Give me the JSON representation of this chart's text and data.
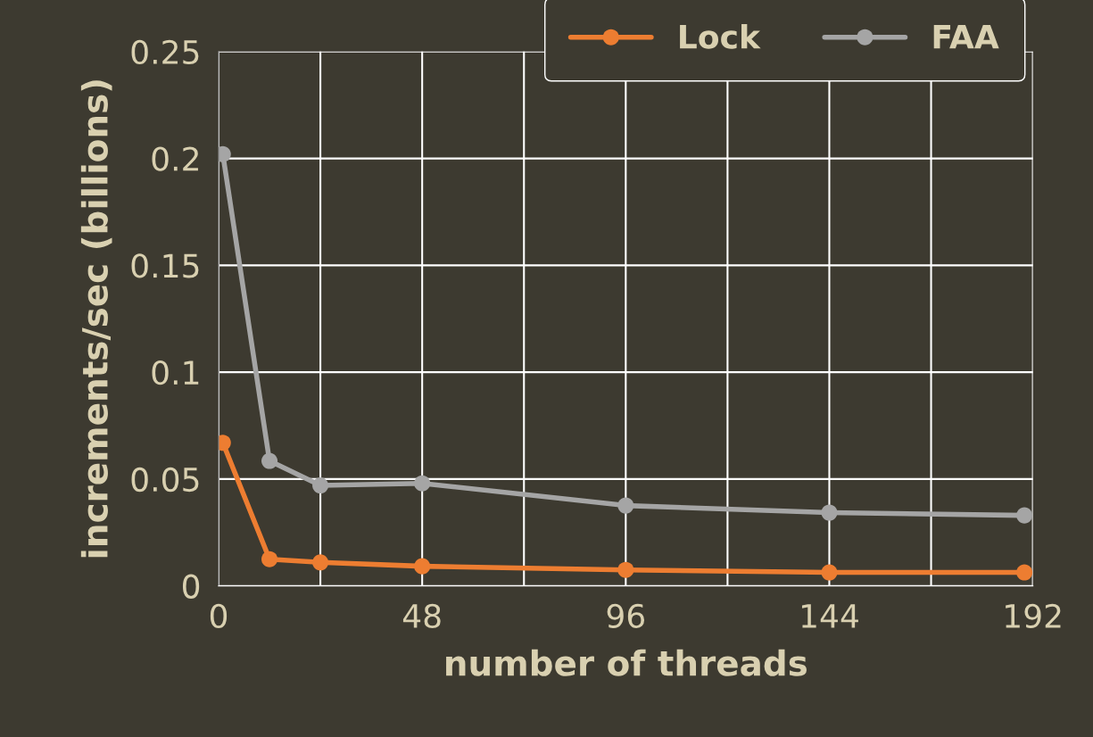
{
  "chart_data": {
    "type": "line",
    "xlabel": "number of threads",
    "ylabel": "increments/sec (billions)",
    "xlim": [
      0,
      192
    ],
    "ylim": [
      0,
      0.25
    ],
    "xticks": [
      0,
      {
        "value": 24,
        "label": null
      },
      48,
      {
        "value": 72,
        "label": null
      },
      96,
      {
        "value": 120,
        "label": null
      },
      144,
      {
        "value": 168,
        "label": null
      },
      192
    ],
    "yticks": [
      0,
      0.05,
      0.1,
      0.15,
      0.2,
      0.25
    ],
    "grid": true,
    "legend": "top right",
    "marker": "circle",
    "line_style": "solid",
    "series": [
      {
        "name": "Lock",
        "color": "#ed7d31",
        "x": [
          1,
          12,
          24,
          48,
          96,
          144,
          190
        ],
        "values": [
          0.067,
          0.0125,
          0.011,
          0.0092,
          0.0075,
          0.0063,
          0.0063
        ]
      },
      {
        "name": "FAA",
        "color": "#a5a5a5",
        "x": [
          1,
          12,
          24,
          48,
          96,
          144,
          190
        ],
        "values": [
          0.202,
          0.0585,
          0.047,
          0.048,
          0.0376,
          0.0343,
          0.033
        ]
      }
    ]
  }
}
